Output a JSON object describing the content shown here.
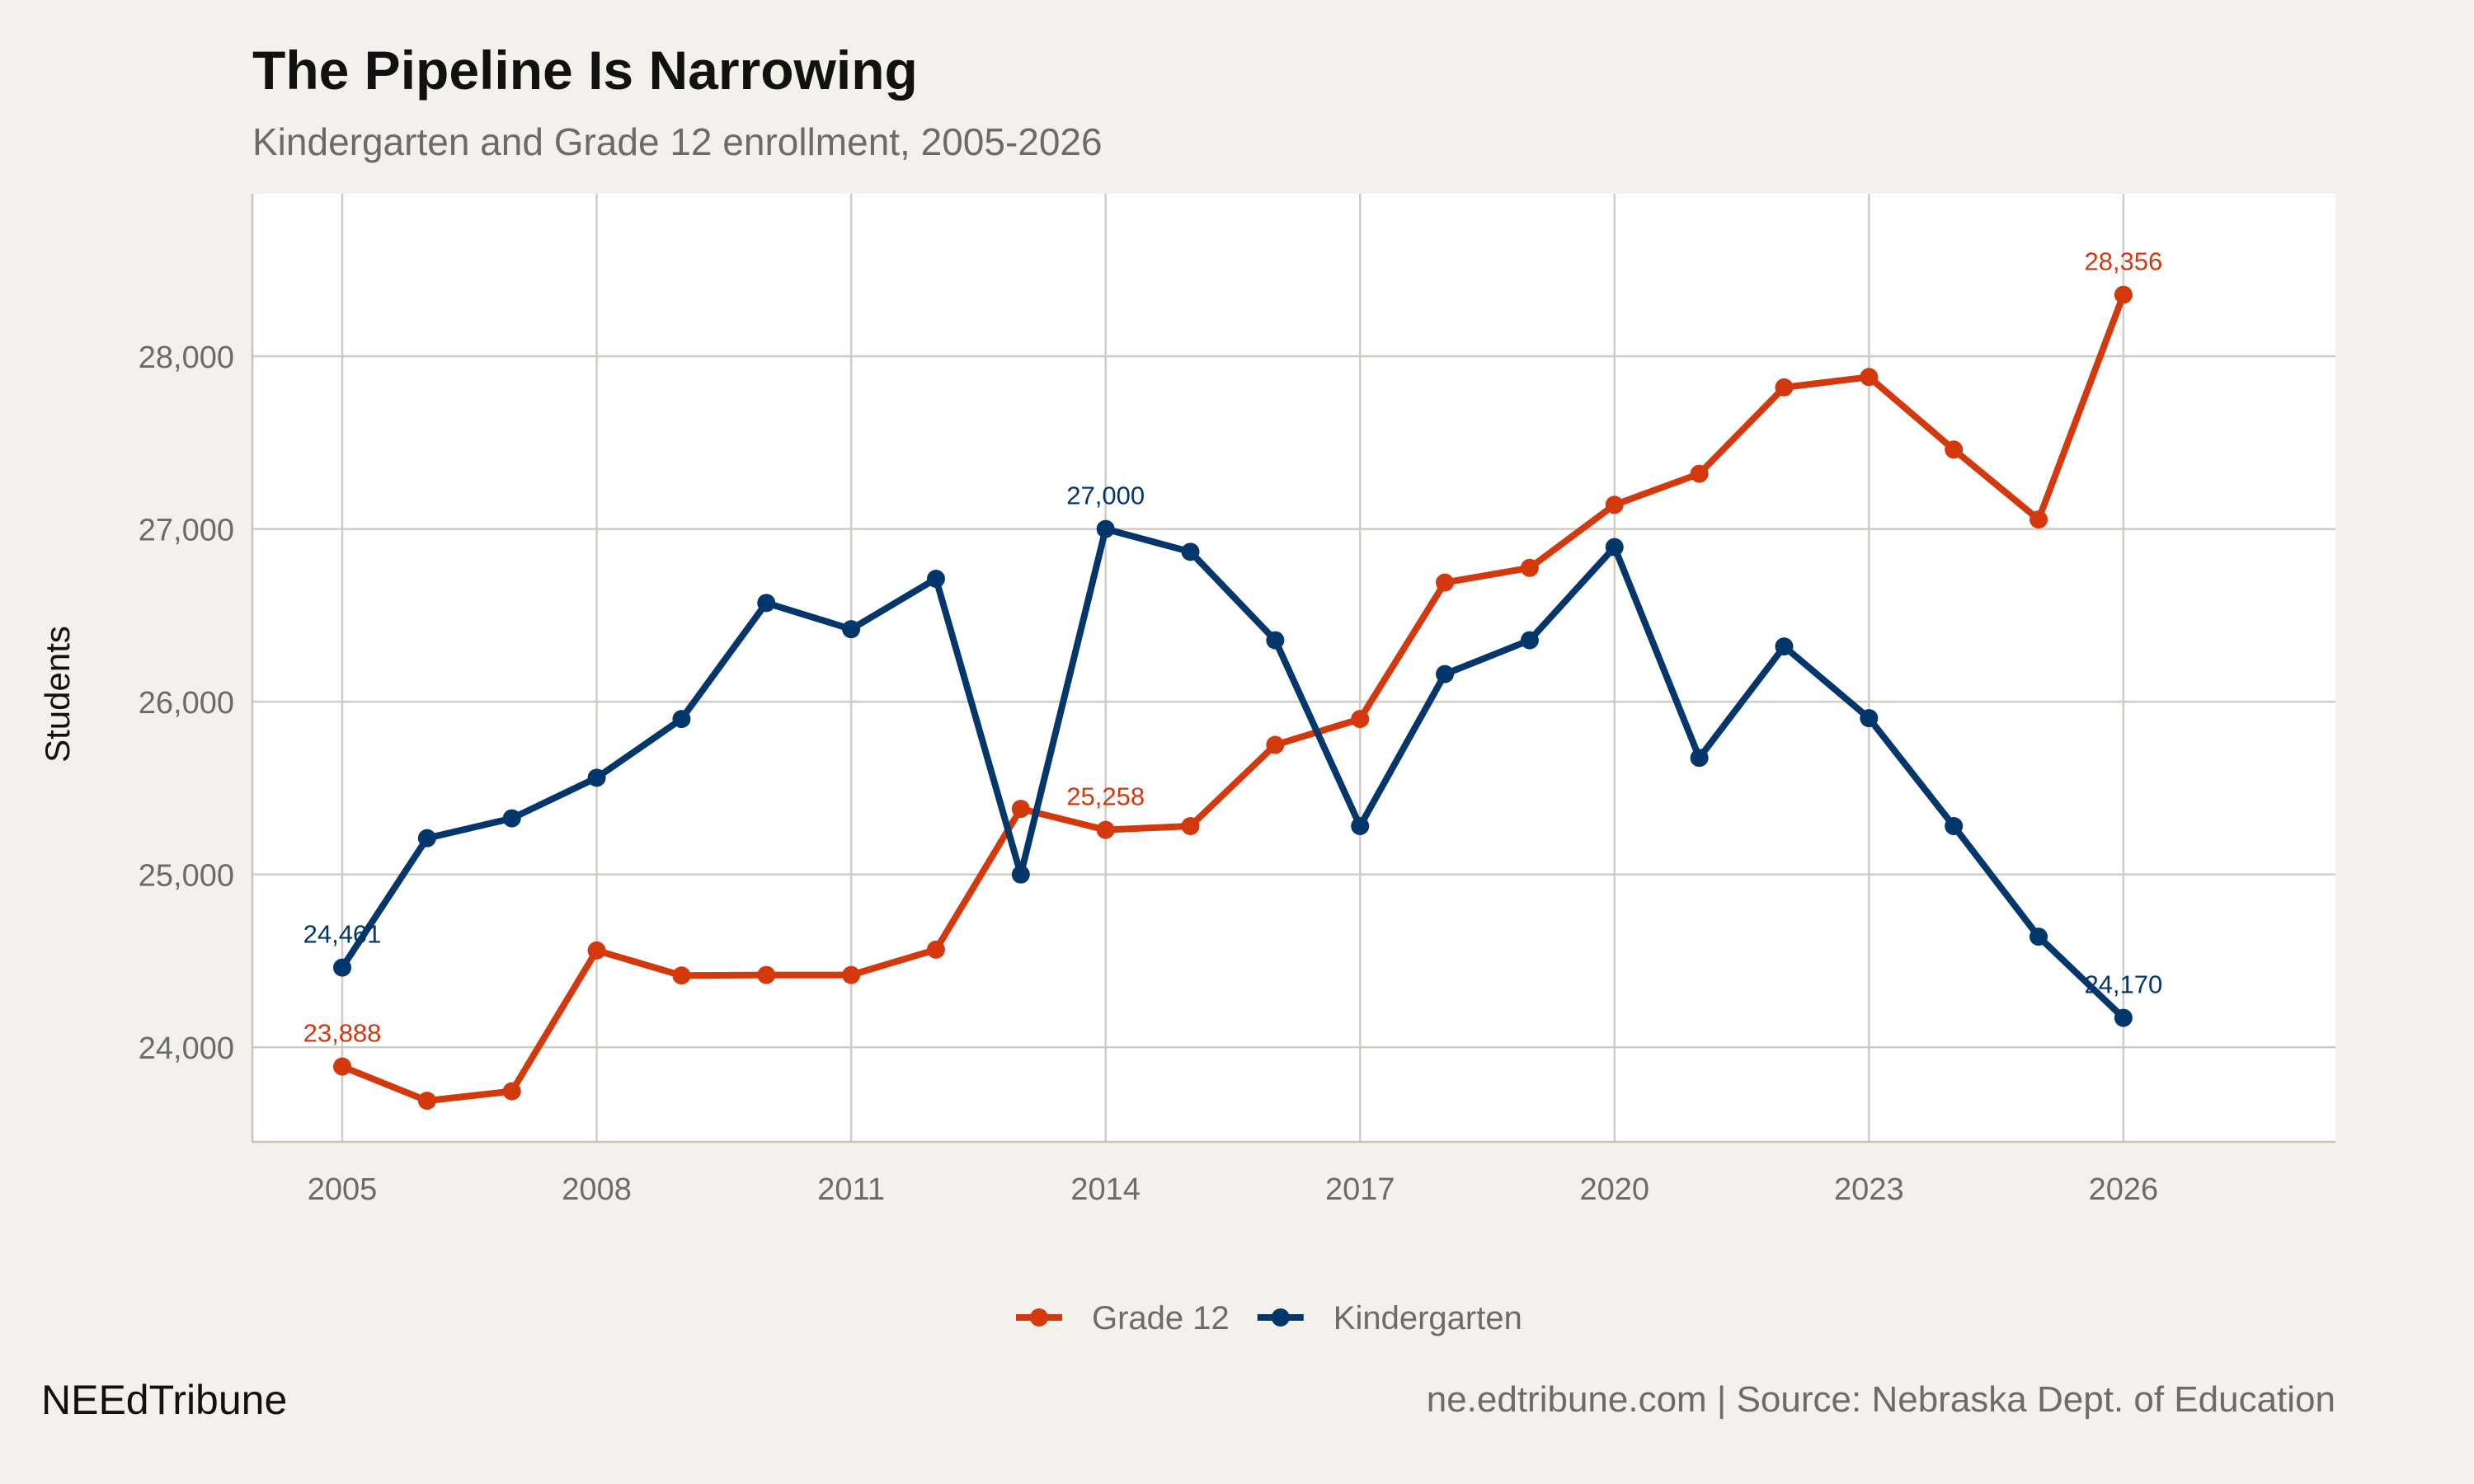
{
  "chart_data": {
    "type": "line",
    "title": "The Pipeline Is Narrowing",
    "subtitle": "Kindergarten and Grade 12 enrollment, 2005-2026",
    "xlabel": "",
    "ylabel": "Students",
    "x": [
      2005,
      2006,
      2007,
      2008,
      2009,
      2010,
      2011,
      2012,
      2013,
      2014,
      2015,
      2016,
      2017,
      2018,
      2019,
      2020,
      2021,
      2022,
      2023,
      2024,
      2025,
      2026
    ],
    "xlim": [
      2003.94,
      2028.5
    ],
    "ylim": [
      23452,
      28941
    ],
    "xticks": [
      2005,
      2008,
      2011,
      2014,
      2017,
      2020,
      2023,
      2026
    ],
    "xtick_labels": [
      "2005",
      "2008",
      "2011",
      "2014",
      "2017",
      "2020",
      "2023",
      "2026"
    ],
    "yticks": [
      24000,
      25000,
      26000,
      27000,
      28000
    ],
    "ytick_labels": [
      "24,000",
      "25,000",
      "26,000",
      "27,000",
      "28,000"
    ],
    "grid": true,
    "legend_position": "bottom",
    "series": [
      {
        "name": "Grade 12",
        "color": "#d4380d",
        "values": [
          23888,
          23690,
          23745,
          24560,
          24415,
          24418,
          24418,
          24565,
          25380,
          25258,
          25280,
          25750,
          25900,
          26690,
          26775,
          27140,
          27320,
          27820,
          27880,
          27460,
          27055,
          28356
        ],
        "annotations": [
          {
            "x": 2005,
            "value": 23888,
            "label": "23,888"
          },
          {
            "x": 2014,
            "value": 25258,
            "label": "25,258"
          },
          {
            "x": 2026,
            "value": 28356,
            "label": "28,356"
          }
        ]
      },
      {
        "name": "Kindergarten",
        "color": "#03366b",
        "values": [
          24461,
          25210,
          25325,
          25560,
          25900,
          26572,
          26420,
          26712,
          25000,
          27000,
          26868,
          26356,
          25280,
          26160,
          26356,
          26895,
          25675,
          26320,
          25905,
          25280,
          24640,
          24170
        ],
        "annotations": [
          {
            "x": 2005,
            "value": 24461,
            "label": "24,461"
          },
          {
            "x": 2014,
            "value": 27000,
            "label": "27,000"
          },
          {
            "x": 2026,
            "value": 24170,
            "label": "24,170"
          }
        ]
      }
    ]
  },
  "footer": {
    "brand": "NEEdTribune",
    "source": "ne.edtribune.com | Source: Nebraska Dept. of Education"
  }
}
